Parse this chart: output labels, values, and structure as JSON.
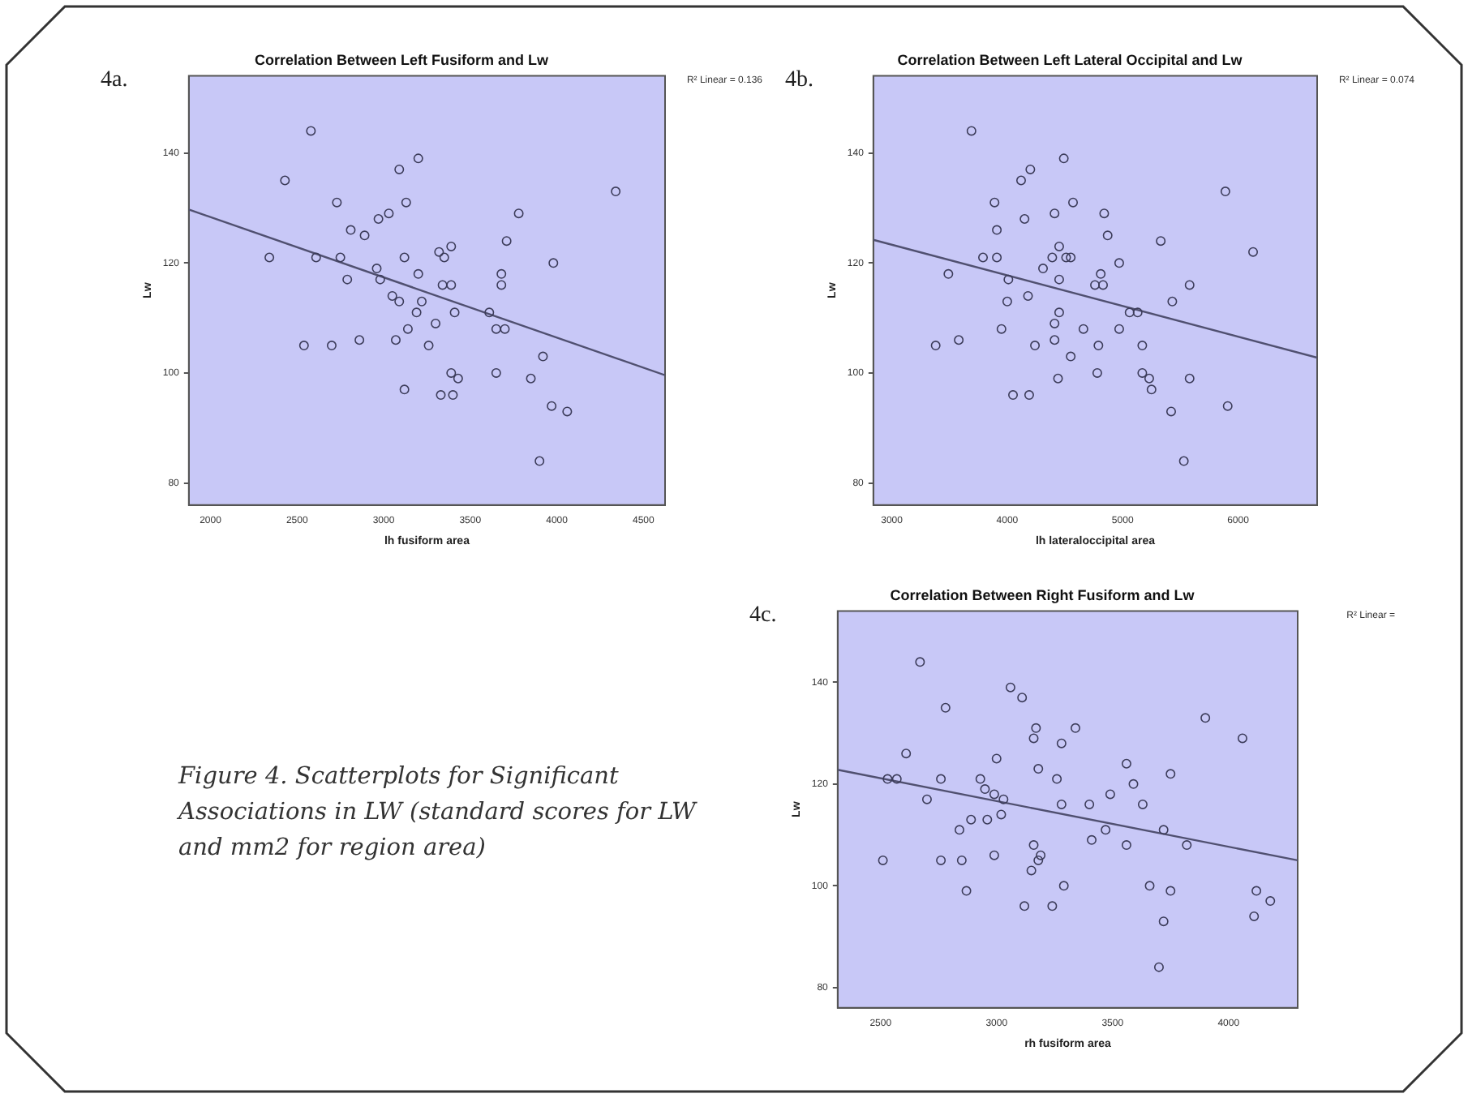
{
  "chart_data": [
    {
      "type": "scatter",
      "title": "Correlation Between Left Fusiform and Lw",
      "xlabel": "lh fusiform area",
      "ylabel": "Lw",
      "annotations": [
        "4a.",
        "R² Linear = 0.136"
      ],
      "xlim": [
        1875,
        4625
      ],
      "ylim": [
        76,
        154
      ],
      "xticks": [
        2000,
        2500,
        3000,
        3500,
        4000,
        4500
      ],
      "yticks": [
        80,
        100,
        120,
        140
      ],
      "marker": "circle",
      "series": [
        {
          "type": "scatter",
          "color": "#3c3c5a",
          "x": [
            2580,
            2430,
            2730,
            3130,
            3090,
            3200,
            3030,
            2970,
            2810,
            2890,
            2340,
            2610,
            2750,
            3120,
            2790,
            2960,
            2980,
            3200,
            3320,
            3350,
            3390,
            3050,
            3090,
            3220,
            3340,
            3390,
            3190,
            3410,
            3300,
            3140,
            3070,
            2860,
            2700,
            2540,
            3260,
            3610,
            3650,
            3700,
            3680,
            3680,
            3710,
            3780,
            3980,
            4340,
            3920,
            3390,
            3430,
            3650,
            3850,
            3120,
            3330,
            3400,
            3970,
            4060,
            3900
          ],
          "values": [
            144,
            135,
            131,
            131,
            137,
            139,
            129,
            128,
            126,
            125,
            121,
            121,
            121,
            121,
            117,
            119,
            117,
            118,
            122,
            121,
            123,
            114,
            113,
            113,
            116,
            116,
            111,
            111,
            109,
            108,
            106,
            106,
            105,
            105,
            105,
            111,
            108,
            108,
            116,
            118,
            124,
            129,
            120,
            133,
            103,
            100,
            99,
            100,
            99,
            97,
            96,
            96,
            94,
            93,
            84
          ]
        },
        {
          "type": "line",
          "color": "#505070",
          "line_style": "solid",
          "marker": "none",
          "x": [
            1875,
            4625
          ],
          "values": [
            129.7,
            99.6
          ]
        }
      ]
    },
    {
      "type": "scatter",
      "title": "Correlation Between Left Lateral Occipital and Lw",
      "xlabel": "lh lateraloccipital area",
      "ylabel": "Lw",
      "annotations": [
        "4b.",
        "R² Linear = 0.074"
      ],
      "xlim": [
        2840,
        6685
      ],
      "ylim": [
        76,
        154
      ],
      "xticks": [
        3000,
        4000,
        5000,
        6000
      ],
      "yticks": [
        80,
        100,
        120,
        140
      ],
      "marker": "circle",
      "series": [
        {
          "type": "scatter",
          "color": "#3c3c5a",
          "x": [
            3690,
            4490,
            4200,
            4120,
            3890,
            4570,
            4150,
            4410,
            4840,
            3910,
            4870,
            5330,
            5890,
            6130,
            3790,
            3910,
            4390,
            4510,
            4550,
            4450,
            4310,
            4970,
            3490,
            4010,
            4450,
            4810,
            4760,
            4830,
            5580,
            4000,
            4180,
            5430,
            4450,
            5060,
            5130,
            3950,
            4410,
            4660,
            4970,
            3380,
            3580,
            4240,
            4410,
            4790,
            5170,
            4550,
            4780,
            5170,
            4440,
            5230,
            5580,
            5250,
            4050,
            4190,
            5910,
            5420,
            5530
          ],
          "values": [
            144,
            139,
            137,
            135,
            131,
            131,
            128,
            129,
            129,
            126,
            125,
            124,
            133,
            122,
            121,
            121,
            121,
            121,
            121,
            123,
            119,
            120,
            118,
            117,
            117,
            118,
            116,
            116,
            116,
            113,
            114,
            113,
            111,
            111,
            111,
            108,
            109,
            108,
            108,
            105,
            106,
            105,
            106,
            105,
            105,
            103,
            100,
            100,
            99,
            99,
            99,
            97,
            96,
            96,
            94,
            93,
            84
          ]
        },
        {
          "type": "line",
          "color": "#505070",
          "line_style": "solid",
          "marker": "none",
          "x": [
            2840,
            6685
          ],
          "values": [
            124.2,
            102.8
          ]
        }
      ]
    },
    {
      "type": "scatter",
      "title": "Correlation Between Right Fusiform and Lw",
      "xlabel": "rh fusiform area",
      "ylabel": "Lw",
      "annotations": [
        "4c.",
        "R² Linear =",
        "Figure 4.  Scatterplots for Significant Associations in LW (standard scores for LW and mm2 for region area)"
      ],
      "xlim": [
        2315,
        4298
      ],
      "ylim": [
        76,
        154
      ],
      "xticks": [
        2500,
        3000,
        3500,
        4000
      ],
      "yticks": [
        80,
        100,
        120,
        140
      ],
      "marker": "circle",
      "series": [
        {
          "type": "scatter",
          "color": "#3c3c5a",
          "x": [
            2670,
            3060,
            3110,
            2780,
            3170,
            3340,
            3160,
            3280,
            3900,
            4060,
            2610,
            3000,
            3560,
            3180,
            3750,
            2530,
            2570,
            2760,
            2930,
            3260,
            3590,
            2950,
            2990,
            3490,
            2700,
            3030,
            3280,
            3400,
            3630,
            2890,
            2960,
            3020,
            2840,
            3470,
            3720,
            3410,
            3160,
            3560,
            3820,
            2510,
            2760,
            2850,
            2990,
            3190,
            3180,
            3150,
            3290,
            3660,
            2870,
            3750,
            4120,
            3120,
            3240,
            4180,
            4110,
            3720,
            3700
          ],
          "values": [
            144,
            139,
            137,
            135,
            131,
            131,
            129,
            128,
            133,
            129,
            126,
            125,
            124,
            123,
            122,
            121,
            121,
            121,
            121,
            121,
            120,
            119,
            118,
            118,
            117,
            117,
            116,
            116,
            116,
            113,
            113,
            114,
            111,
            111,
            111,
            109,
            108,
            108,
            108,
            105,
            105,
            105,
            106,
            106,
            105,
            103,
            100,
            100,
            99,
            99,
            99,
            96,
            96,
            97,
            94,
            93,
            84
          ]
        },
        {
          "type": "line",
          "color": "#505070",
          "line_style": "solid",
          "marker": "none",
          "x": [
            2315,
            4298
          ],
          "values": [
            122.8,
            105.0
          ]
        }
      ]
    }
  ]
}
